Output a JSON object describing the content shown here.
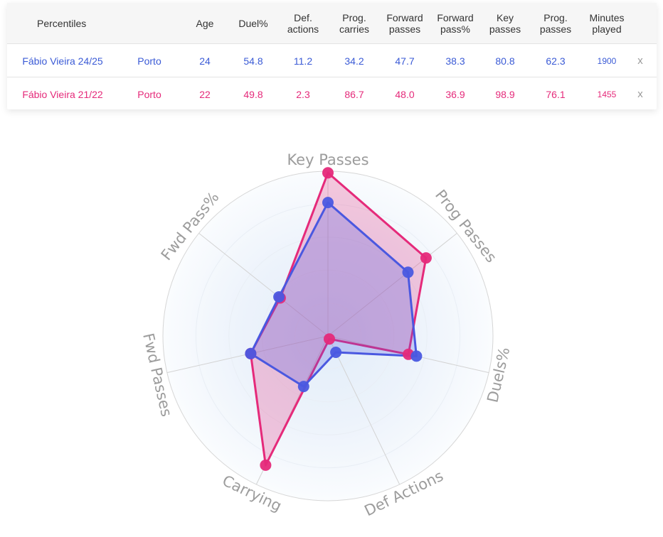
{
  "table": {
    "columns": [
      {
        "id": "name",
        "label": "Percentiles"
      },
      {
        "id": "club",
        "label": ""
      },
      {
        "id": "age",
        "label": "Age"
      },
      {
        "id": "duel",
        "label": "Duel%"
      },
      {
        "id": "def",
        "label": "Def. actions"
      },
      {
        "id": "carries",
        "label": "Prog. carries"
      },
      {
        "id": "fwdpasses",
        "label": "Forward passes"
      },
      {
        "id": "fwdpct",
        "label": "Forward pass%"
      },
      {
        "id": "key",
        "label": "Key passes"
      },
      {
        "id": "progpasses",
        "label": "Prog. passes"
      },
      {
        "id": "minutes",
        "label": "Minutes played"
      }
    ],
    "rows": [
      {
        "player": "Fábio Vieira 24/25",
        "club": "Porto",
        "age": "24",
        "duel": "54.8",
        "def": "11.2",
        "carries": "34.2",
        "fwdpasses": "47.7",
        "fwdpct": "38.3",
        "key": "80.8",
        "progpasses": "62.3",
        "minutes": "1900",
        "remove": "x",
        "color": "#3b5bd6"
      },
      {
        "player": "Fábio Vieira 21/22",
        "club": "Porto",
        "age": "22",
        "duel": "49.8",
        "def": "2.3",
        "carries": "86.7",
        "fwdpasses": "48.0",
        "fwdpct": "36.9",
        "key": "98.9",
        "progpasses": "76.1",
        "minutes": "1455",
        "remove": "x",
        "color": "#e52a7a"
      }
    ]
  },
  "chart_data": {
    "type": "radar",
    "axes": [
      "Key Passes",
      "Prog Passes",
      "Duels%",
      "Def Actions",
      "Carrying",
      "Fwd Passes",
      "Fwd Pass%"
    ],
    "range": [
      0,
      100
    ],
    "series": [
      {
        "name": "Fábio Vieira 24/25",
        "color": "#4a58e0",
        "values": [
          81,
          62,
          55,
          11,
          34,
          48,
          38
        ]
      },
      {
        "name": "Fábio Vieira 21/22",
        "color": "#e52a7a",
        "values": [
          99,
          76,
          50,
          2,
          87,
          48,
          37
        ]
      }
    ]
  }
}
